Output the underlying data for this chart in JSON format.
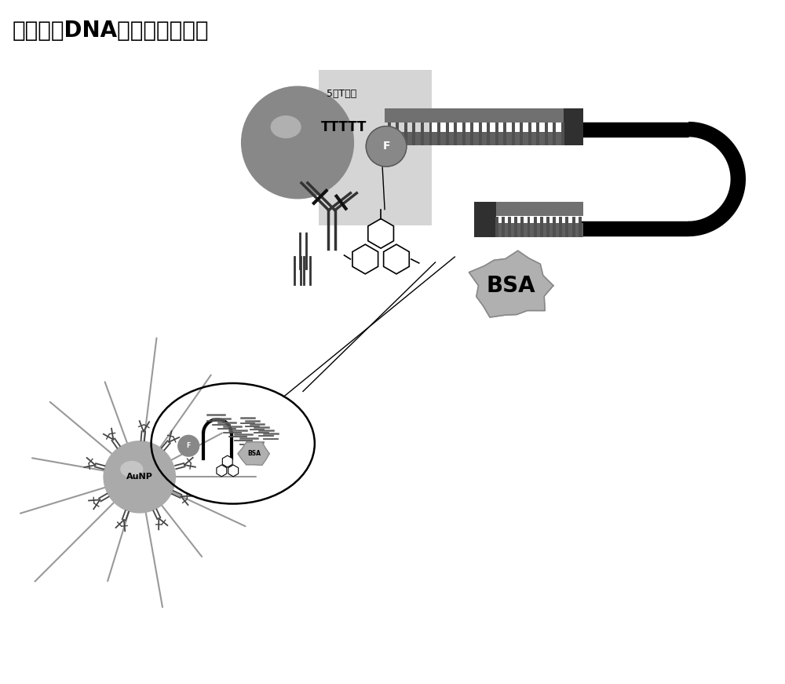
{
  "title": "结合诱导DNA组装荧光检测法",
  "title_fontsize": 20,
  "bg_color": "#ffffff",
  "dark_gray": "#333333",
  "mid_gray": "#777777",
  "light_gray": "#aaaaaa",
  "lighter_gray": "#cccccc",
  "label_5T": "5个T碱基",
  "label_TTTTT": "TTTTT",
  "label_F": "F",
  "label_BSA": "BSA",
  "label_AuNP": "AuNP",
  "figsize": [
    10.0,
    8.71
  ]
}
